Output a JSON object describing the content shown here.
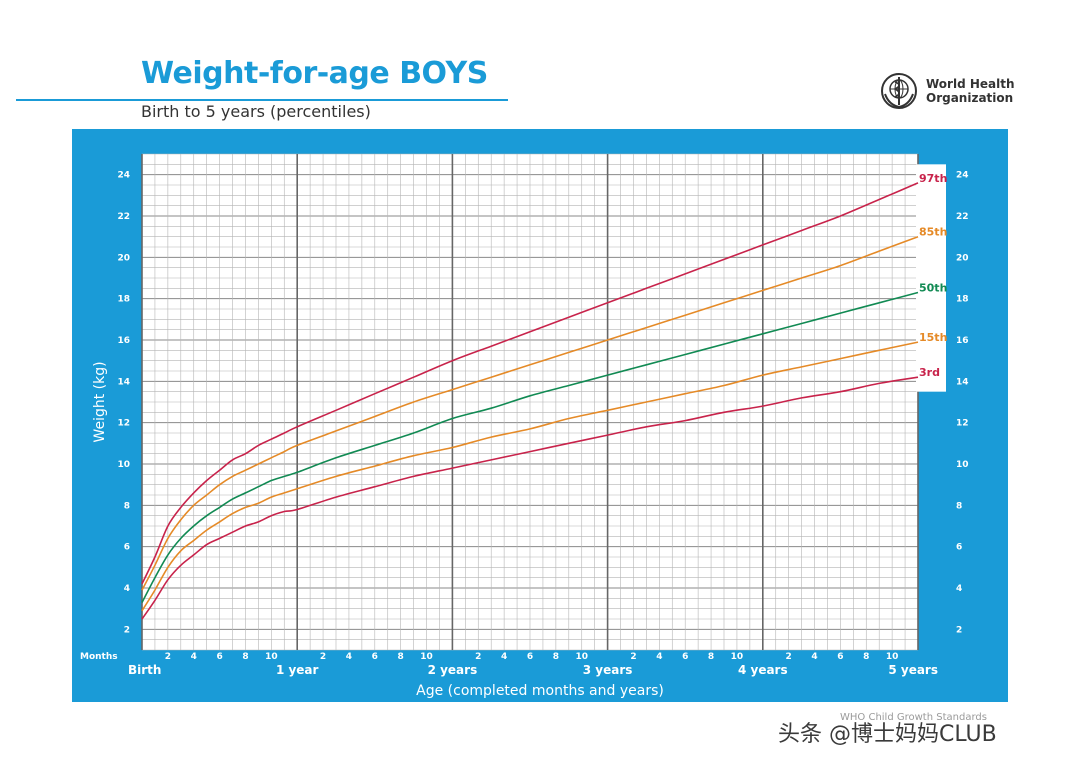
{
  "header": {
    "title": "Weight-for-age BOYS",
    "subtitle": "Birth to 5 years (percentiles)",
    "org_logo_icon": "who-emblem-icon",
    "org_name_line1": "World Health",
    "org_name_line2": "Organization"
  },
  "colors": {
    "brand_blue": "#1a9bd7",
    "p3_p97": "#c8234b",
    "p15_p85": "#e58a27",
    "p50": "#118a53"
  },
  "footer": {
    "source": "WHO Child Growth Standards",
    "watermark": "头条 @博士妈妈CLUB"
  },
  "chart_data": {
    "type": "line",
    "ylabel": "Weight (kg)",
    "xlabel": "Age (completed months and years)",
    "x_unit_label": "Months",
    "xlim": [
      0,
      60
    ],
    "ylim": [
      1,
      25
    ],
    "y_ticks": [
      2,
      4,
      6,
      8,
      10,
      12,
      14,
      16,
      18,
      20,
      22,
      24
    ],
    "x_month_ticks": [
      2,
      4,
      6,
      8,
      10
    ],
    "x_year_labels": [
      "Birth",
      "1 year",
      "2 years",
      "3 years",
      "4 years",
      "5 years"
    ],
    "grid": true,
    "x": [
      0,
      1,
      2,
      3,
      4,
      5,
      6,
      7,
      8,
      9,
      10,
      11,
      12,
      15,
      18,
      21,
      24,
      27,
      30,
      33,
      36,
      39,
      42,
      45,
      48,
      51,
      54,
      57,
      60
    ],
    "series": [
      {
        "name": "97th",
        "color": "#c8234b",
        "values": [
          4.2,
          5.5,
          7.0,
          7.9,
          8.6,
          9.2,
          9.7,
          10.2,
          10.5,
          10.9,
          11.2,
          11.5,
          11.8,
          12.6,
          13.4,
          14.2,
          15.0,
          15.7,
          16.4,
          17.1,
          17.8,
          18.5,
          19.2,
          19.9,
          20.6,
          21.3,
          22.0,
          22.8,
          23.6
        ]
      },
      {
        "name": "85th",
        "color": "#e58a27",
        "values": [
          3.9,
          5.1,
          6.4,
          7.3,
          8.0,
          8.5,
          9.0,
          9.4,
          9.7,
          10.0,
          10.3,
          10.6,
          10.9,
          11.6,
          12.3,
          13.0,
          13.6,
          14.2,
          14.8,
          15.4,
          16.0,
          16.6,
          17.2,
          17.8,
          18.4,
          19.0,
          19.6,
          20.3,
          21.0
        ]
      },
      {
        "name": "50th",
        "color": "#118a53",
        "values": [
          3.3,
          4.5,
          5.6,
          6.4,
          7.0,
          7.5,
          7.9,
          8.3,
          8.6,
          8.9,
          9.2,
          9.4,
          9.6,
          10.3,
          10.9,
          11.5,
          12.2,
          12.7,
          13.3,
          13.8,
          14.3,
          14.8,
          15.3,
          15.8,
          16.3,
          16.8,
          17.3,
          17.8,
          18.3
        ]
      },
      {
        "name": "15th",
        "color": "#e58a27",
        "values": [
          2.9,
          3.9,
          5.0,
          5.8,
          6.3,
          6.8,
          7.2,
          7.6,
          7.9,
          8.1,
          8.4,
          8.6,
          8.8,
          9.4,
          9.9,
          10.4,
          10.8,
          11.3,
          11.7,
          12.2,
          12.6,
          13.0,
          13.4,
          13.8,
          14.3,
          14.7,
          15.1,
          15.5,
          15.9
        ]
      },
      {
        "name": "3rd",
        "color": "#c8234b",
        "values": [
          2.5,
          3.4,
          4.4,
          5.1,
          5.6,
          6.1,
          6.4,
          6.7,
          7.0,
          7.2,
          7.5,
          7.7,
          7.8,
          8.4,
          8.9,
          9.4,
          9.8,
          10.2,
          10.6,
          11.0,
          11.4,
          11.8,
          12.1,
          12.5,
          12.8,
          13.2,
          13.5,
          13.9,
          14.2
        ]
      }
    ]
  }
}
